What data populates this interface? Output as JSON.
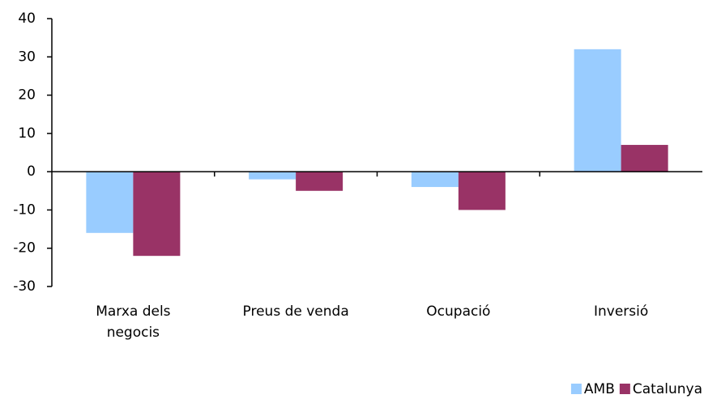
{
  "chart_data": {
    "type": "bar",
    "categories": [
      "Marxa dels negocis",
      "Preus de venda",
      "Ocupació",
      "Inversió"
    ],
    "series": [
      {
        "name": "AMB",
        "color": "#99ccff",
        "values": [
          -16,
          -2,
          -4,
          32
        ]
      },
      {
        "name": "Catalunya",
        "color": "#993366",
        "values": [
          -22,
          -5,
          -10,
          7
        ]
      }
    ],
    "ylim": [
      -30,
      40
    ],
    "yticks": [
      -30,
      -20,
      -10,
      0,
      10,
      20,
      30,
      40
    ],
    "legend": "bottom-right"
  }
}
